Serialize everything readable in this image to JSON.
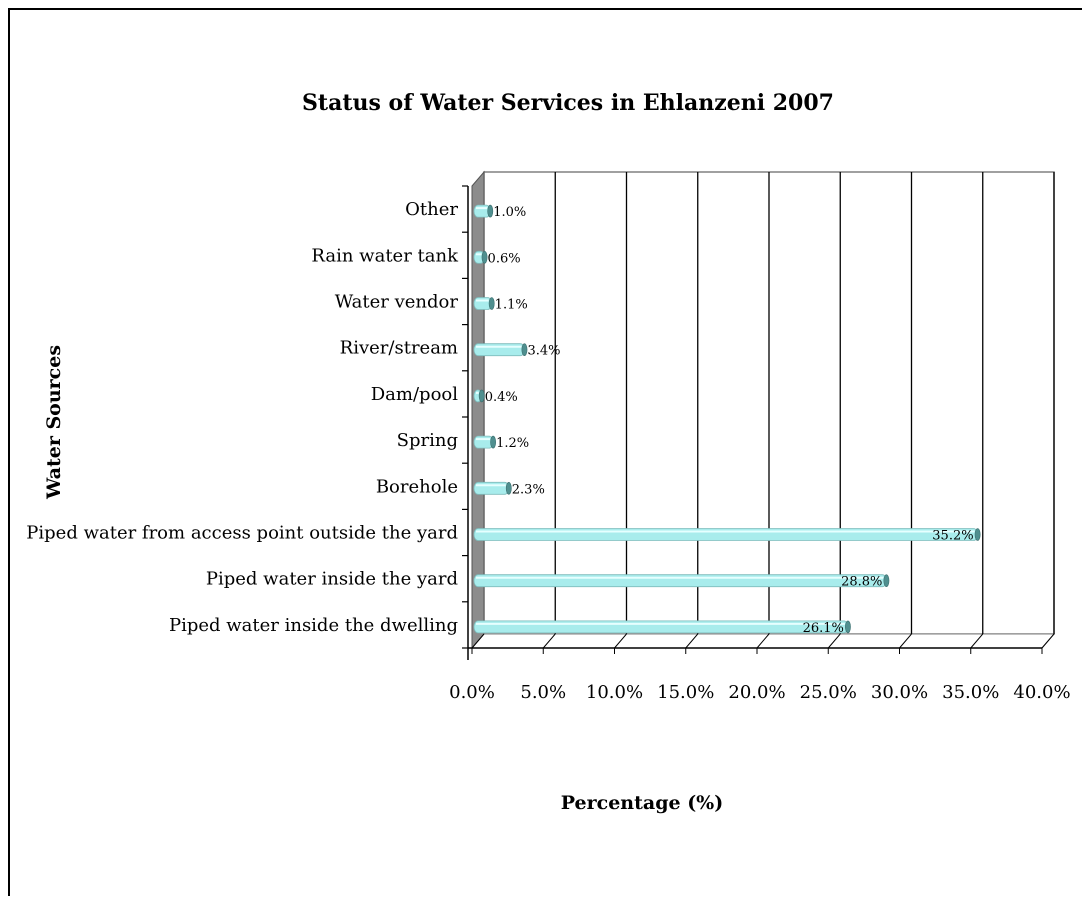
{
  "chart_data": {
    "type": "bar",
    "orientation": "horizontal",
    "title": "Status of Water Services in Ehlanzeni 2007",
    "xlabel": "Percentage (%)",
    "ylabel": "Water Sources",
    "categories": [
      "Piped water inside the dwelling",
      "Piped water inside the yard",
      "Piped water from access point outside the yard",
      "Borehole",
      "Spring",
      "Dam/pool",
      "River/stream",
      "Water vendor",
      "Rain water tank",
      "Other"
    ],
    "values": [
      26.1,
      28.8,
      35.2,
      2.3,
      1.2,
      0.4,
      3.4,
      1.1,
      0.6,
      1.0
    ],
    "data_labels": [
      "26.1%",
      "28.8%",
      "35.2%",
      "2.3%",
      "1.2%",
      "0.4%",
      "3.4%",
      "1.1%",
      "0.6%",
      "1.0%"
    ],
    "x_ticks": [
      "0.0%",
      "5.0%",
      "10.0%",
      "15.0%",
      "20.0%",
      "25.0%",
      "30.0%",
      "35.0%",
      "40.0%"
    ],
    "xlim": [
      0,
      40
    ],
    "grid": true,
    "legend": "none",
    "bar_color": "#a8ecec"
  }
}
